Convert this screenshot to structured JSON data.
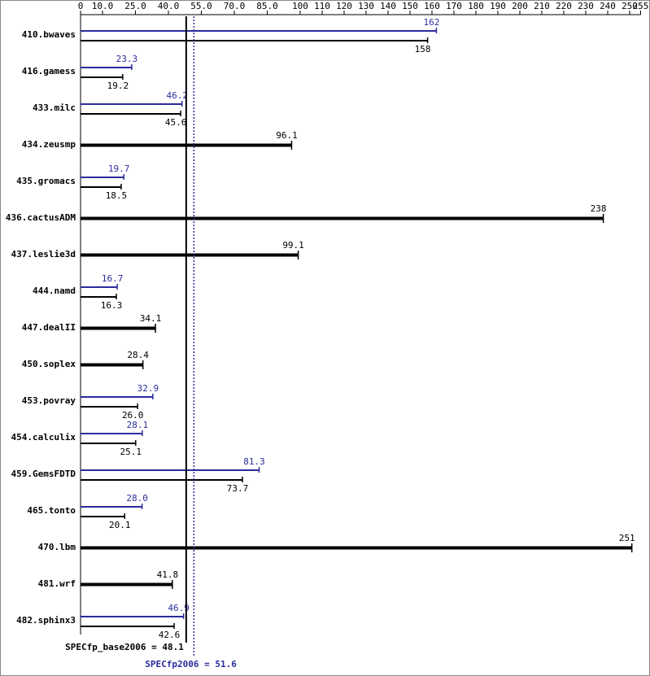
{
  "chart_data": {
    "type": "hbar-pair",
    "categories": [
      "410.bwaves",
      "416.gamess",
      "433.milc",
      "434.zeusmp",
      "435.gromacs",
      "436.cactusADM",
      "437.leslie3d",
      "444.namd",
      "447.dealII",
      "450.soplex",
      "453.povray",
      "454.calculix",
      "459.GemsFDTD",
      "465.tonto",
      "470.lbm",
      "481.wrf",
      "482.sphinx3"
    ],
    "series": [
      {
        "color": "#000000",
        "values": [
          158,
          19.2,
          45.6,
          96.1,
          18.5,
          238,
          99.1,
          16.3,
          34.1,
          28.4,
          26.0,
          25.1,
          73.7,
          20.1,
          251,
          41.8,
          42.6
        ],
        "value_labels": [
          "158",
          "19.2",
          "45.6",
          "96.1",
          "18.5",
          "238",
          "99.1",
          "16.3",
          "34.1",
          "28.4",
          "26.0",
          "25.1",
          "73.7",
          "20.1",
          "251",
          "41.8",
          "42.6"
        ]
      },
      {
        "color": "#2b2b9c",
        "values": [
          162,
          23.3,
          46.2,
          null,
          19.7,
          null,
          null,
          16.7,
          null,
          null,
          32.9,
          28.1,
          81.3,
          28.0,
          null,
          null,
          46.9
        ],
        "value_labels": [
          "162",
          "23.3",
          "46.2",
          null,
          "19.7",
          null,
          null,
          "16.7",
          null,
          null,
          "32.9",
          "28.1",
          "81.3",
          "28.0",
          null,
          null,
          "46.9"
        ]
      }
    ],
    "xlim": [
      0,
      255
    ],
    "xticks": [
      0,
      {
        "value": 10,
        "label": "10.0"
      },
      {
        "value": 25,
        "label": "25.0"
      },
      {
        "value": 40,
        "label": "40.0"
      },
      {
        "value": 55,
        "label": "55.0"
      },
      {
        "value": 70,
        "label": "70.0"
      },
      {
        "value": 85,
        "label": "85.0"
      },
      100,
      110,
      120,
      130,
      140,
      150,
      160,
      170,
      180,
      190,
      200,
      210,
      220,
      230,
      240,
      250,
      255
    ],
    "ref_lines": [
      {
        "label": "SPECfp_base2006 = 48.1",
        "value": 48.1,
        "color": "#000000",
        "style": "solid"
      },
      {
        "label": "SPECfp2006 = 51.6",
        "value": 51.6,
        "color": "#2b2b9c",
        "style": "dotted"
      }
    ]
  }
}
